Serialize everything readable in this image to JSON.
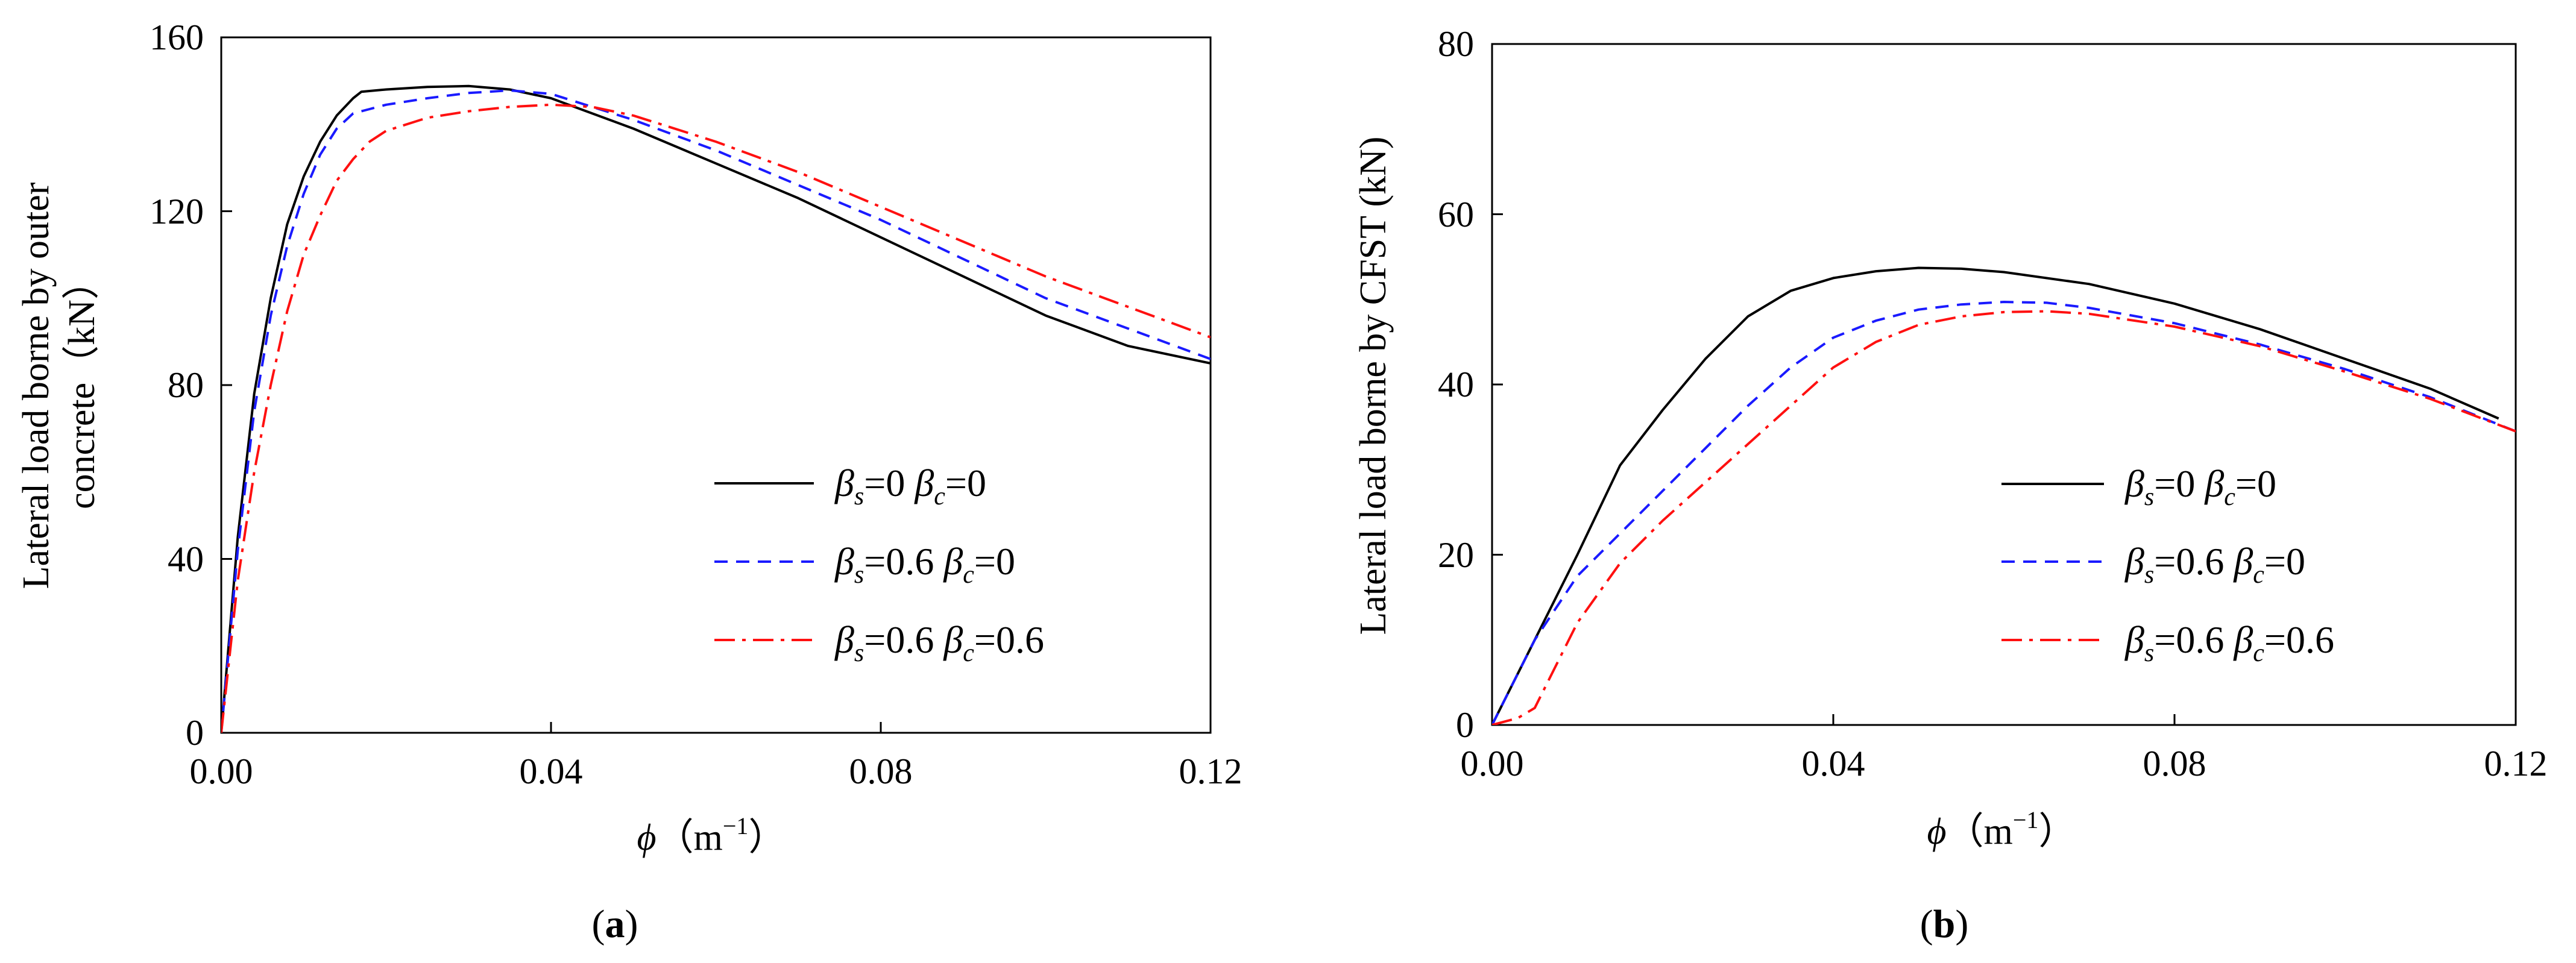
{
  "chart_data": [
    {
      "type": "line",
      "caption": "a",
      "ylabel_lines": [
        "Lateral load borne by outer",
        "concrete（kN）"
      ],
      "xlabel_symbol": "ϕ",
      "xlabel_unit": "（m",
      "xlabel_exp": "−1",
      "xlabel_close": "）",
      "xlim": [
        0,
        0.12
      ],
      "ylim": [
        0,
        160
      ],
      "xticks": [
        0,
        0.04,
        0.08,
        0.12
      ],
      "xtick_labels": [
        "0.00",
        "0.04",
        "0.08",
        "0.12"
      ],
      "yticks": [
        0,
        40,
        80,
        120,
        160
      ],
      "ytick_labels": [
        "0",
        "40",
        "80",
        "120",
        "160"
      ],
      "grid": false,
      "legend_position": "center-right",
      "series": [
        {
          "name": "βs=0 βc=0",
          "legend": {
            "b1": "β",
            "s1": "s",
            "v1": "=0 ",
            "b2": "β",
            "s2": "c",
            "v2": "=0"
          },
          "color": "#000000",
          "dash": "",
          "points": [
            [
              0,
              0
            ],
            [
              0.002,
              45
            ],
            [
              0.004,
              78
            ],
            [
              0.006,
              100
            ],
            [
              0.008,
              117
            ],
            [
              0.01,
              128
            ],
            [
              0.012,
              136
            ],
            [
              0.014,
              142
            ],
            [
              0.016,
              146
            ],
            [
              0.017,
              147.5
            ],
            [
              0.02,
              148
            ],
            [
              0.025,
              148.6
            ],
            [
              0.03,
              148.8
            ],
            [
              0.035,
              148
            ],
            [
              0.04,
              146
            ],
            [
              0.05,
              139
            ],
            [
              0.06,
              131
            ],
            [
              0.07,
              123
            ],
            [
              0.08,
              114
            ],
            [
              0.09,
              105
            ],
            [
              0.1,
              96
            ],
            [
              0.11,
              89
            ],
            [
              0.12,
              85
            ]
          ]
        },
        {
          "name": "βs=0.6 βc=0",
          "legend": {
            "b1": "β",
            "s1": "s",
            "v1": "=0.6 ",
            "b2": "β",
            "s2": "c",
            "v2": "=0"
          },
          "color": "#1a1aff",
          "dash": "22,14",
          "points": [
            [
              0,
              0
            ],
            [
              0.002,
              42
            ],
            [
              0.004,
              74
            ],
            [
              0.006,
              96
            ],
            [
              0.008,
              112
            ],
            [
              0.01,
              124
            ],
            [
              0.012,
              133
            ],
            [
              0.014,
              139
            ],
            [
              0.016,
              142.5
            ],
            [
              0.018,
              143.5
            ],
            [
              0.02,
              144.5
            ],
            [
              0.025,
              146
            ],
            [
              0.03,
              147.2
            ],
            [
              0.035,
              147.8
            ],
            [
              0.04,
              147
            ],
            [
              0.05,
              141
            ],
            [
              0.06,
              134
            ],
            [
              0.07,
              126
            ],
            [
              0.08,
              118
            ],
            [
              0.09,
              109
            ],
            [
              0.1,
              100
            ],
            [
              0.11,
              93
            ],
            [
              0.12,
              86
            ]
          ]
        },
        {
          "name": "βs=0.6 βc=0.6",
          "legend": {
            "b1": "β",
            "s1": "s",
            "v1": "=0.6 ",
            "b2": "β",
            "s2": "c",
            "v2": "=0.6"
          },
          "color": "#ff1010",
          "dash": "34,12,6,12",
          "points": [
            [
              0,
              0
            ],
            [
              0.002,
              35
            ],
            [
              0.004,
              60
            ],
            [
              0.006,
              80
            ],
            [
              0.008,
              97
            ],
            [
              0.01,
              110
            ],
            [
              0.012,
              119
            ],
            [
              0.014,
              127
            ],
            [
              0.016,
              132
            ],
            [
              0.018,
              136
            ],
            [
              0.02,
              138.5
            ],
            [
              0.025,
              141.5
            ],
            [
              0.03,
              143
            ],
            [
              0.035,
              144
            ],
            [
              0.04,
              144.5
            ],
            [
              0.045,
              144
            ],
            [
              0.05,
              142
            ],
            [
              0.06,
              136
            ],
            [
              0.07,
              129
            ],
            [
              0.08,
              121
            ],
            [
              0.09,
              113
            ],
            [
              0.1,
              105
            ],
            [
              0.11,
              98
            ],
            [
              0.12,
              91
            ]
          ]
        }
      ]
    },
    {
      "type": "line",
      "caption": "b",
      "ylabel_lines": [
        "Lateral load borne by CFST (kN)"
      ],
      "xlabel_symbol": "ϕ",
      "xlabel_unit": "（m",
      "xlabel_exp": "−1",
      "xlabel_close": "）",
      "xlim": [
        0,
        0.12
      ],
      "ylim": [
        0,
        80
      ],
      "xticks": [
        0,
        0.04,
        0.08,
        0.12
      ],
      "xtick_labels": [
        "0.00",
        "0.04",
        "0.08",
        "0.12"
      ],
      "yticks": [
        0,
        20,
        40,
        60,
        80
      ],
      "ytick_labels": [
        "0",
        "20",
        "40",
        "60",
        "80"
      ],
      "grid": false,
      "legend_position": "center-right",
      "series": [
        {
          "name": "βs=0 βc=0",
          "legend": {
            "b1": "β",
            "s1": "s",
            "v1": "=0 ",
            "b2": "β",
            "s2": "c",
            "v2": "=0"
          },
          "color": "#000000",
          "dash": "",
          "points": [
            [
              0,
              0
            ],
            [
              0.005,
              10
            ],
            [
              0.01,
              20
            ],
            [
              0.015,
              30.5
            ],
            [
              0.02,
              37
            ],
            [
              0.025,
              43
            ],
            [
              0.03,
              48
            ],
            [
              0.035,
              51
            ],
            [
              0.04,
              52.5
            ],
            [
              0.045,
              53.3
            ],
            [
              0.05,
              53.7
            ],
            [
              0.055,
              53.6
            ],
            [
              0.06,
              53.2
            ],
            [
              0.07,
              51.8
            ],
            [
              0.08,
              49.5
            ],
            [
              0.09,
              46.5
            ],
            [
              0.1,
              43
            ],
            [
              0.11,
              39.5
            ],
            [
              0.118,
              36
            ]
          ]
        },
        {
          "name": "βs=0.6 βc=0",
          "legend": {
            "b1": "β",
            "s1": "s",
            "v1": "=0.6 ",
            "b2": "β",
            "s2": "c",
            "v2": "=0"
          },
          "color": "#1a1aff",
          "dash": "22,14",
          "points": [
            [
              0,
              0
            ],
            [
              0.005,
              10
            ],
            [
              0.01,
              17.5
            ],
            [
              0.015,
              22.5
            ],
            [
              0.02,
              27.5
            ],
            [
              0.025,
              32.5
            ],
            [
              0.03,
              37.5
            ],
            [
              0.035,
              42
            ],
            [
              0.04,
              45.5
            ],
            [
              0.045,
              47.5
            ],
            [
              0.05,
              48.8
            ],
            [
              0.055,
              49.4
            ],
            [
              0.06,
              49.7
            ],
            [
              0.065,
              49.6
            ],
            [
              0.07,
              49
            ],
            [
              0.08,
              47.2
            ],
            [
              0.09,
              44.7
            ],
            [
              0.1,
              41.8
            ],
            [
              0.11,
              38.5
            ],
            [
              0.12,
              34.5
            ]
          ]
        },
        {
          "name": "βs=0.6 βc=0.6",
          "legend": {
            "b1": "β",
            "s1": "s",
            "v1": "=0.6 ",
            "b2": "β",
            "s2": "c",
            "v2": "=0.6"
          },
          "color": "#ff1010",
          "dash": "34,12,6,12",
          "points": [
            [
              0,
              0
            ],
            [
              0.003,
              0.8
            ],
            [
              0.005,
              2
            ],
            [
              0.008,
              8
            ],
            [
              0.01,
              12
            ],
            [
              0.015,
              19
            ],
            [
              0.02,
              24
            ],
            [
              0.025,
              28.5
            ],
            [
              0.03,
              33
            ],
            [
              0.035,
              37.5
            ],
            [
              0.04,
              42
            ],
            [
              0.045,
              45
            ],
            [
              0.05,
              47
            ],
            [
              0.055,
              48
            ],
            [
              0.06,
              48.5
            ],
            [
              0.065,
              48.6
            ],
            [
              0.07,
              48.3
            ],
            [
              0.08,
              46.8
            ],
            [
              0.09,
              44.5
            ],
            [
              0.1,
              41.5
            ],
            [
              0.11,
              38.3
            ],
            [
              0.12,
              34.5
            ]
          ]
        }
      ]
    }
  ]
}
